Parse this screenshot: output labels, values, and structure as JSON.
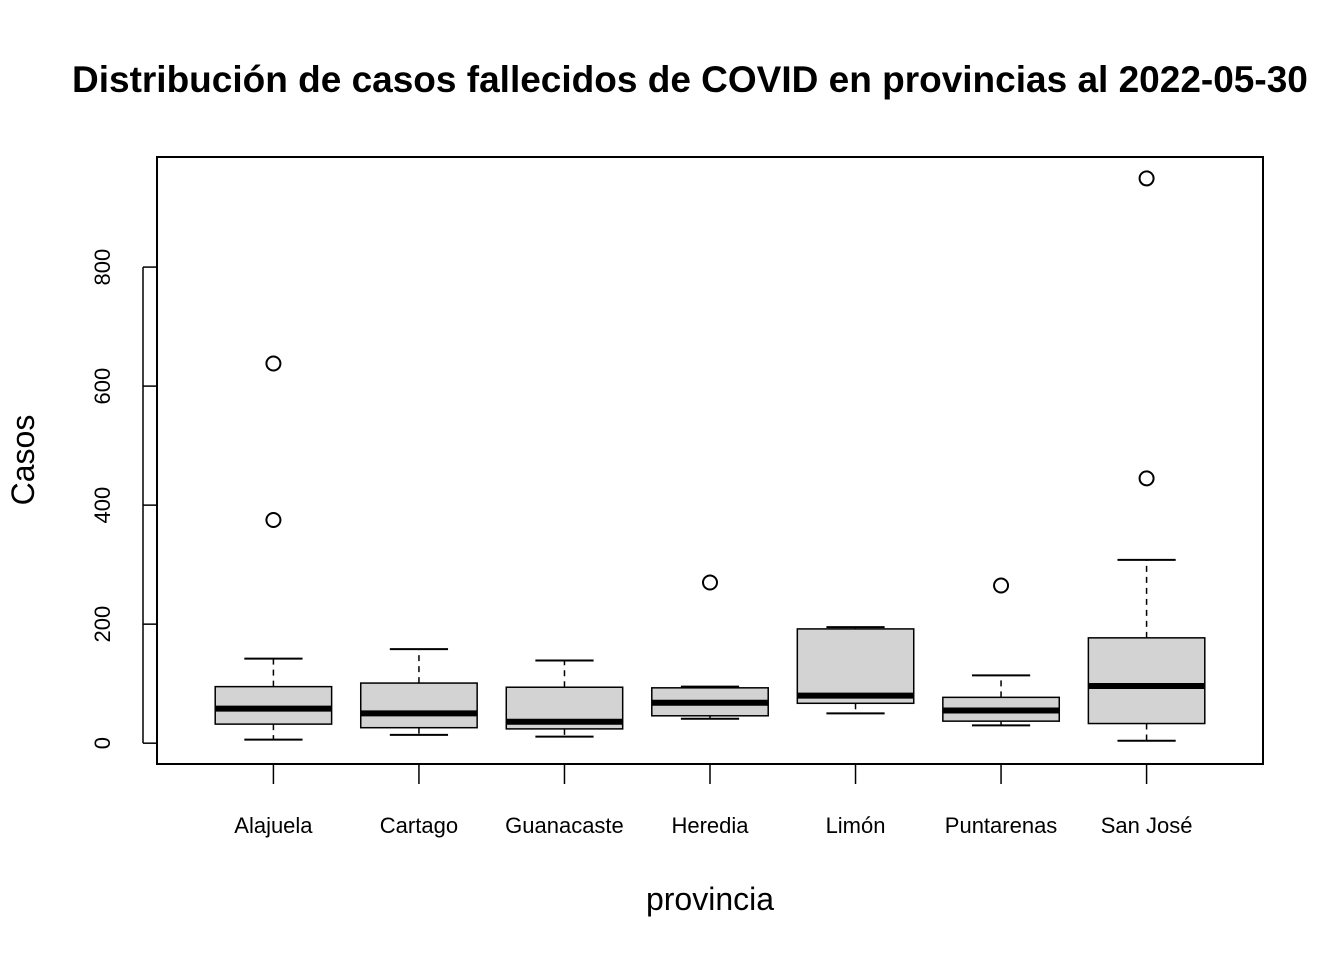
{
  "chart_data": {
    "type": "boxplot",
    "title": "Distribución de casos fallecidos de COVID en provincias al 2022-05-30",
    "xlabel": "provincia",
    "ylabel": "Casos",
    "ylim": [
      -35,
      985
    ],
    "yticks": [
      0,
      200,
      400,
      600,
      800
    ],
    "ytick_labels": [
      "0",
      "200",
      "400",
      "600",
      "800"
    ],
    "grid": false,
    "box_fill": "#d3d3d3",
    "stroke": "#000000",
    "categories": [
      "Alajuela",
      "Cartago",
      "Guanacaste",
      "Heredia",
      "Limón",
      "Puntarenas",
      "San José"
    ],
    "boxes": [
      {
        "min": 6,
        "q1": 32,
        "median": 58,
        "q3": 95,
        "max": 142,
        "outliers": [
          375,
          638
        ]
      },
      {
        "min": 14,
        "q1": 26,
        "median": 50,
        "q3": 101,
        "max": 158,
        "outliers": []
      },
      {
        "min": 11,
        "q1": 24,
        "median": 36,
        "q3": 94,
        "max": 139,
        "outliers": []
      },
      {
        "min": 41,
        "q1": 46,
        "median": 68,
        "q3": 93,
        "max": 95,
        "outliers": [
          270
        ]
      },
      {
        "min": 50,
        "q1": 67,
        "median": 80,
        "q3": 192,
        "max": 195,
        "outliers": []
      },
      {
        "min": 30,
        "q1": 37,
        "median": 55,
        "q3": 77,
        "max": 114,
        "outliers": [
          265
        ]
      },
      {
        "min": 4,
        "q1": 33,
        "median": 96,
        "q3": 177,
        "max": 308,
        "outliers": [
          445,
          949
        ]
      }
    ]
  }
}
